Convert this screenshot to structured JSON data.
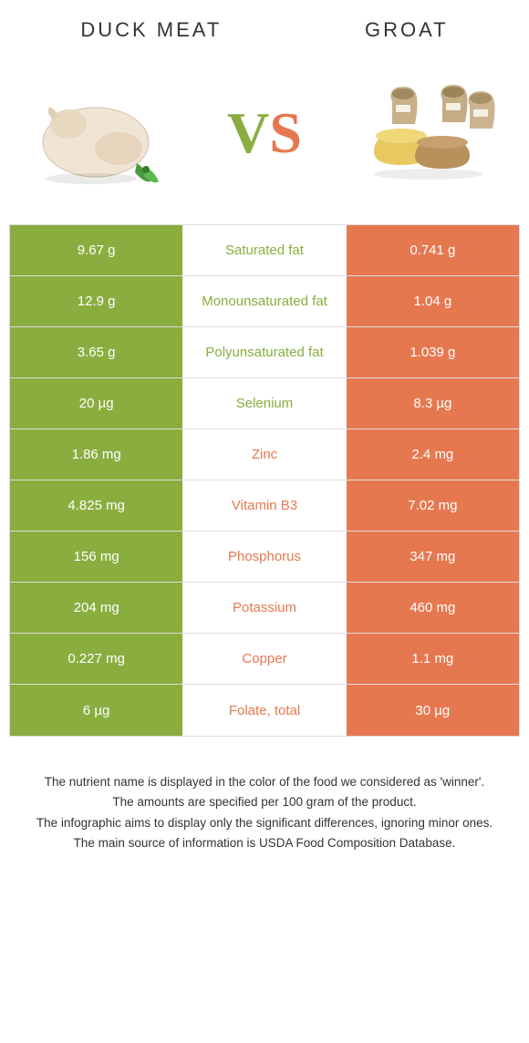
{
  "colors": {
    "left": "#8aad3f",
    "right": "#e67850",
    "border": "#dddddd",
    "text": "#ffffff"
  },
  "header": {
    "left": "Duck meat",
    "right": "Groat"
  },
  "vs": {
    "v": "V",
    "s": "S"
  },
  "rows": [
    {
      "left": "9.67 g",
      "label": "Saturated fat",
      "right": "0.741 g",
      "winner": "left"
    },
    {
      "left": "12.9 g",
      "label": "Monounsaturated fat",
      "right": "1.04 g",
      "winner": "left"
    },
    {
      "left": "3.65 g",
      "label": "Polyunsaturated fat",
      "right": "1.039 g",
      "winner": "left"
    },
    {
      "left": "20 µg",
      "label": "Selenium",
      "right": "8.3 µg",
      "winner": "left"
    },
    {
      "left": "1.86 mg",
      "label": "Zinc",
      "right": "2.4 mg",
      "winner": "right"
    },
    {
      "left": "4.825 mg",
      "label": "Vitamin B3",
      "right": "7.02 mg",
      "winner": "right"
    },
    {
      "left": "156 mg",
      "label": "Phosphorus",
      "right": "347 mg",
      "winner": "right"
    },
    {
      "left": "204 mg",
      "label": "Potassium",
      "right": "460 mg",
      "winner": "right"
    },
    {
      "left": "0.227 mg",
      "label": "Copper",
      "right": "1.1 mg",
      "winner": "right"
    },
    {
      "left": "6 µg",
      "label": "Folate, total",
      "right": "30 µg",
      "winner": "right"
    }
  ],
  "footer": {
    "l1": "The nutrient name is displayed in the color of the food we considered as 'winner'.",
    "l2": "The amounts are specified per 100 gram of the product.",
    "l3": "The infographic aims to display only the significant differences, ignoring minor ones.",
    "l4": "The main source of information is USDA Food Composition Database."
  }
}
